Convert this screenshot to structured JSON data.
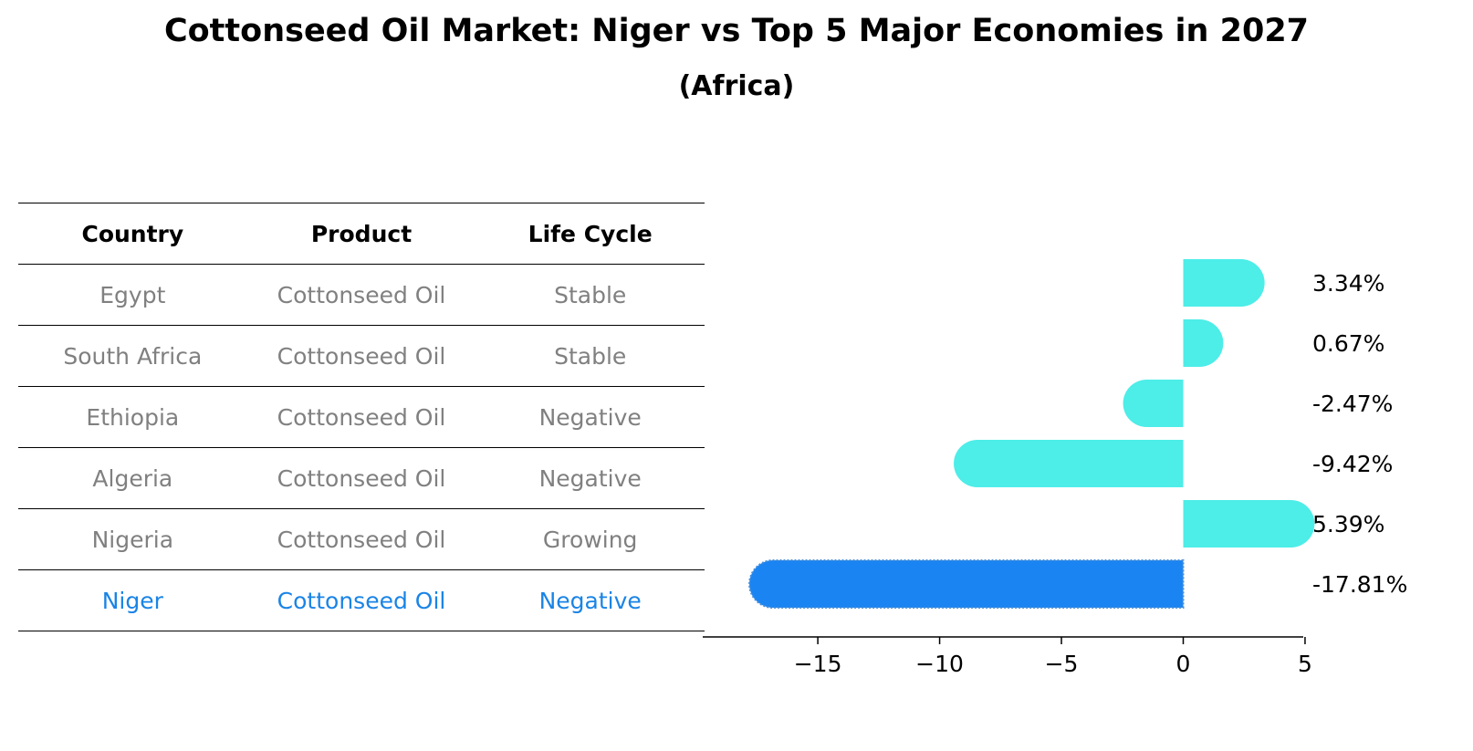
{
  "title": "Cottonseed Oil Market: Niger vs Top 5 Major Economies in 2027",
  "subtitle": "(Africa)",
  "table": {
    "headers": [
      "Country",
      "Product",
      "Life Cycle"
    ],
    "rows": [
      {
        "country": "Egypt",
        "product": "Cottonseed Oil",
        "life_cycle": "Stable"
      },
      {
        "country": "South Africa",
        "product": "Cottonseed Oil",
        "life_cycle": "Stable"
      },
      {
        "country": "Ethiopia",
        "product": "Cottonseed Oil",
        "life_cycle": "Negative"
      },
      {
        "country": "Algeria",
        "product": "Cottonseed Oil",
        "life_cycle": "Negative"
      },
      {
        "country": "Nigeria",
        "product": "Cottonseed Oil",
        "life_cycle": "Growing"
      },
      {
        "country": "Niger",
        "product": "Cottonseed Oil",
        "life_cycle": "Negative"
      }
    ]
  },
  "colors": {
    "bar": "#4dede8",
    "highlight": "#1a84f2",
    "table_text": "#808080",
    "highlight_text": "#1a84e6"
  },
  "chart_data": {
    "type": "bar",
    "orientation": "horizontal",
    "categories": [
      "Egypt",
      "South Africa",
      "Ethiopia",
      "Algeria",
      "Nigeria",
      "Niger"
    ],
    "values": [
      3.34,
      0.67,
      -2.47,
      -9.42,
      5.39,
      -17.81
    ],
    "value_labels": [
      "3.34%",
      "0.67%",
      "-2.47%",
      "-9.42%",
      "5.39%",
      "-17.81%"
    ],
    "highlight_index": 5,
    "xlim": [
      -18.9,
      6.5
    ],
    "xticks": [
      -15,
      -10,
      -5,
      0,
      5
    ],
    "xtick_labels": [
      "−15",
      "−10",
      "−5",
      "0",
      "5"
    ]
  }
}
